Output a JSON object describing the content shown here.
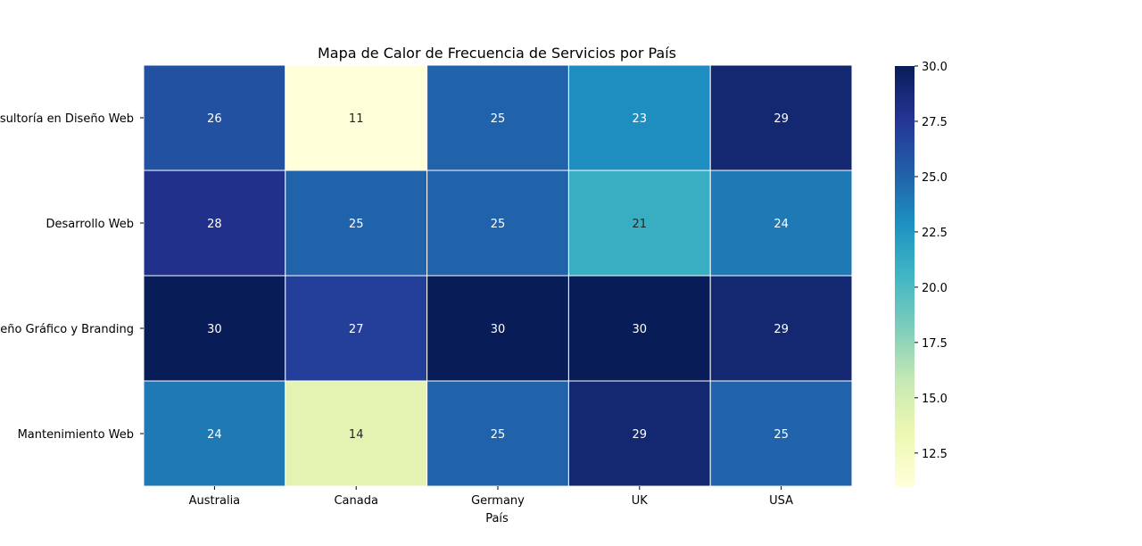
{
  "chart_data": {
    "type": "heatmap",
    "title": "Mapa de Calor de Frecuencia de Servicios por País",
    "xlabel": "País",
    "ylabel": "",
    "x_categories": [
      "Australia",
      "Canada",
      "Germany",
      "UK",
      "USA"
    ],
    "y_categories": [
      "Consultoría en Diseño Web",
      "Desarrollo Web",
      "Diseño Gráfico y Branding",
      "Mantenimiento Web"
    ],
    "values": [
      [
        26,
        11,
        25,
        23,
        29
      ],
      [
        28,
        25,
        25,
        21,
        24
      ],
      [
        30,
        27,
        30,
        30,
        29
      ],
      [
        24,
        14,
        25,
        29,
        25
      ]
    ],
    "colormap": "YlGnBu",
    "colorbar": {
      "range": [
        11,
        30
      ],
      "ticks": [
        "12.5",
        "15.0",
        "17.5",
        "20.0",
        "22.5",
        "25.0",
        "27.5",
        "30.0"
      ]
    },
    "annotations": true
  }
}
